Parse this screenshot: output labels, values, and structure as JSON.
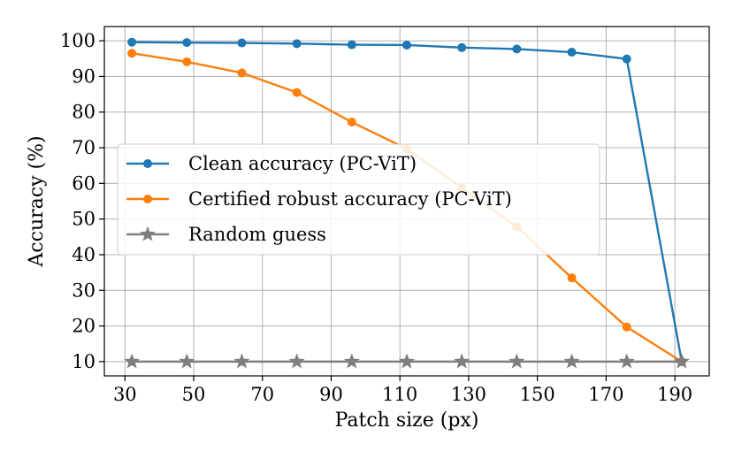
{
  "chart_data": {
    "type": "line",
    "title": "",
    "xlabel": "Patch size (px)",
    "ylabel": "Accuracy (%)",
    "xlim": [
      24,
      200
    ],
    "ylim": [
      6,
      104
    ],
    "xticks": [
      30,
      50,
      70,
      90,
      110,
      130,
      150,
      170,
      190
    ],
    "yticks": [
      10,
      20,
      30,
      40,
      50,
      60,
      70,
      80,
      90,
      100
    ],
    "grid": true,
    "legend_position": "center-left",
    "x": [
      32,
      48,
      64,
      80,
      96,
      112,
      128,
      144,
      160,
      176,
      192
    ],
    "series": [
      {
        "name": "Clean accuracy (PC-ViT)",
        "color": "#1f77b4",
        "marker": "circle",
        "values": [
          99.6,
          99.5,
          99.4,
          99.2,
          98.9,
          98.8,
          98.1,
          97.7,
          96.8,
          94.9,
          10.0
        ]
      },
      {
        "name": "Certified robust accuracy (PC-ViT)",
        "color": "#ff7f0e",
        "marker": "circle",
        "values": [
          96.5,
          94.1,
          91.0,
          85.5,
          77.2,
          69.7,
          58.8,
          47.8,
          33.5,
          19.7,
          10.0
        ]
      },
      {
        "name": "Random guess",
        "color": "#7f7f7f",
        "marker": "star",
        "values": [
          10,
          10,
          10,
          10,
          10,
          10,
          10,
          10,
          10,
          10,
          10
        ]
      }
    ]
  }
}
